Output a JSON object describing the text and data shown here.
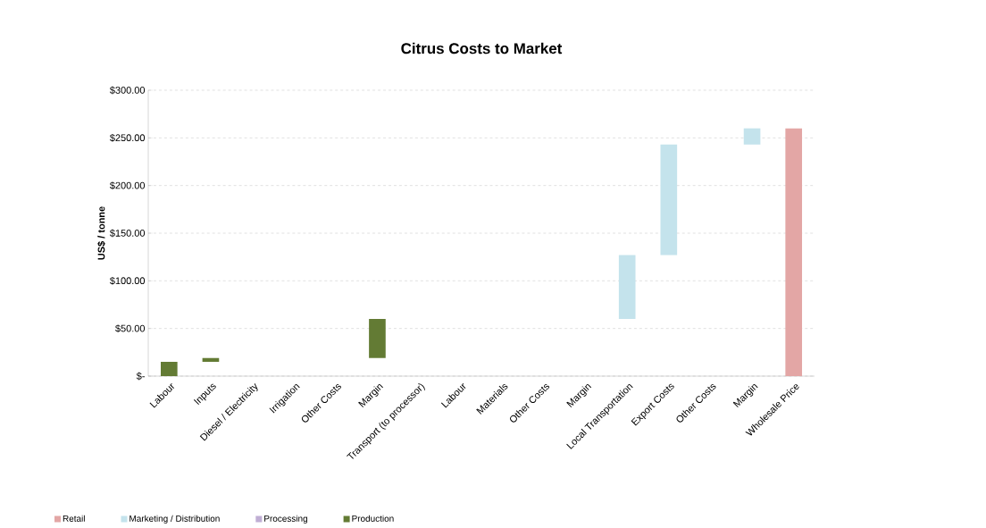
{
  "chart_data": {
    "type": "bar",
    "title": "Citrus Costs to Market",
    "ylabel": "US$ / tonne",
    "categories": [
      "Labour",
      "Inputs",
      "Diesel / Electricity",
      "Irrigation",
      "Other Costs",
      "Margin",
      "Transport (to processor)",
      "Labour",
      "Materials",
      "Other Costs",
      "Margin",
      "Local Transportation",
      "Export Costs",
      "Other Costs",
      "Margin",
      "Wholesale Price"
    ],
    "series": [
      {
        "name": "Retail",
        "color": "#e3a6a5",
        "values": [
          null,
          null,
          null,
          null,
          null,
          null,
          null,
          null,
          null,
          null,
          null,
          null,
          null,
          null,
          null,
          260
        ],
        "base": [
          null,
          null,
          null,
          null,
          null,
          null,
          null,
          null,
          null,
          null,
          null,
          null,
          null,
          null,
          null,
          0
        ]
      },
      {
        "name": "Marketing / Distribution",
        "color": "#c4e3ec",
        "values": [
          null,
          null,
          null,
          null,
          null,
          null,
          null,
          null,
          null,
          null,
          null,
          67,
          116,
          null,
          17,
          null
        ],
        "base": [
          null,
          null,
          null,
          null,
          null,
          null,
          null,
          null,
          null,
          null,
          null,
          60,
          127,
          null,
          243,
          null
        ]
      },
      {
        "name": "Processing",
        "color": "#c0aed4",
        "values": [
          null,
          null,
          null,
          null,
          null,
          null,
          null,
          null,
          null,
          null,
          null,
          null,
          null,
          null,
          null,
          null
        ]
      },
      {
        "name": "Production",
        "color": "#637b34",
        "values": [
          15,
          4,
          null,
          null,
          null,
          41,
          null,
          null,
          null,
          null,
          null,
          null,
          null,
          null,
          null,
          null
        ],
        "base": [
          0,
          15,
          null,
          null,
          null,
          19,
          null,
          null,
          null,
          null,
          null,
          null,
          null,
          null,
          null,
          null
        ]
      }
    ],
    "ylim": [
      0,
      300
    ],
    "yticks": [
      {
        "value": 0,
        "label": "$-"
      },
      {
        "value": 50,
        "label": "$50.00"
      },
      {
        "value": 100,
        "label": "$100.00"
      },
      {
        "value": 150,
        "label": "$150.00"
      },
      {
        "value": 200,
        "label": "$200.00"
      },
      {
        "value": 250,
        "label": "$250.00"
      },
      {
        "value": 300,
        "label": "$300.00"
      }
    ],
    "grid": "y",
    "legend": "bottom"
  }
}
